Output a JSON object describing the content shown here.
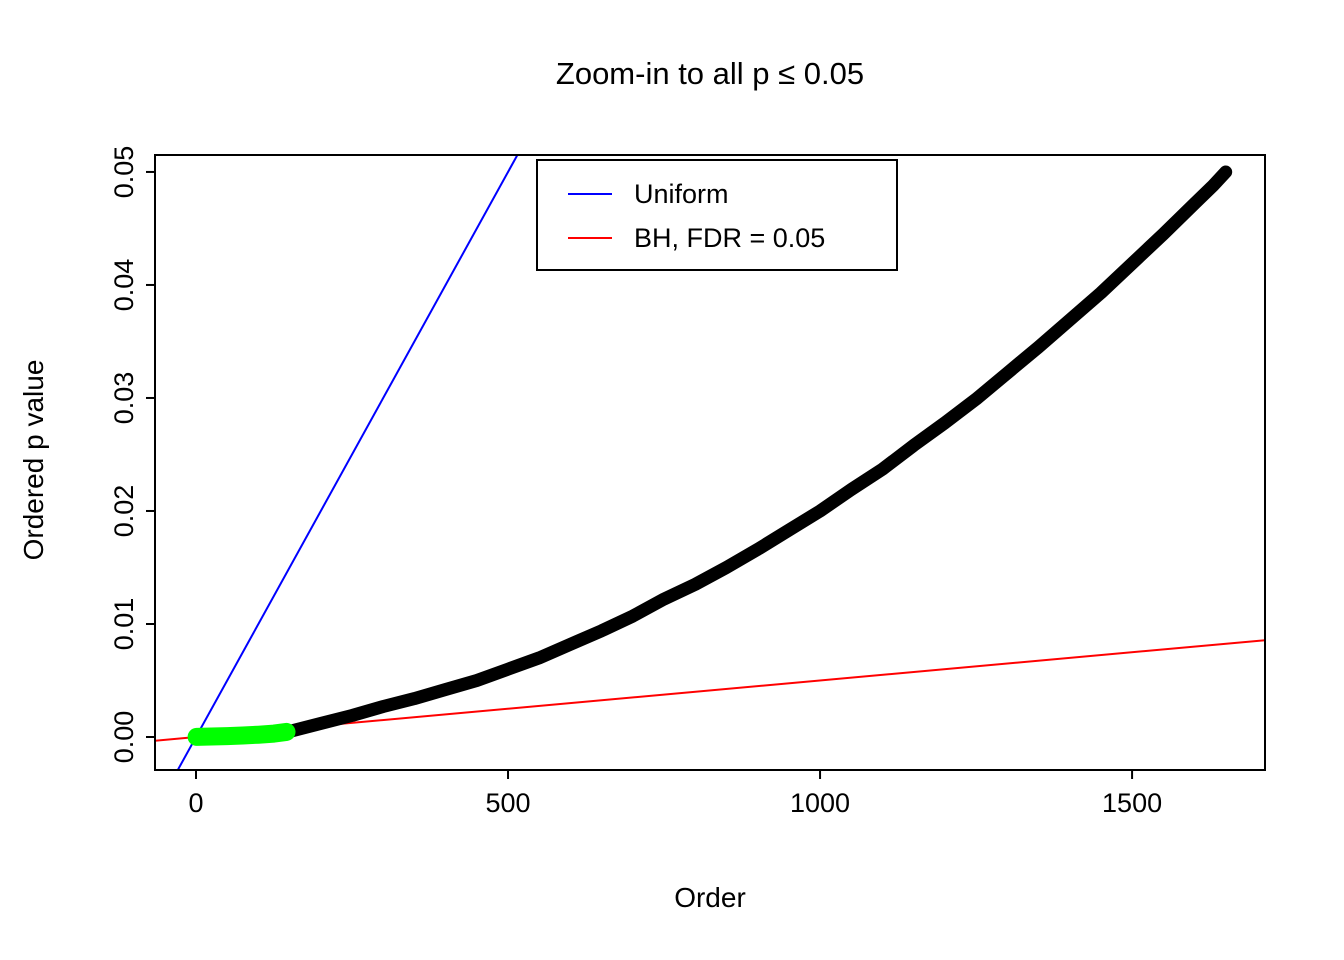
{
  "figure": {
    "background": "#FFFFFF"
  },
  "chart_data": {
    "type": "scatter",
    "title": "Zoom-in to all p ≤ 0.05",
    "xlabel": "Order",
    "ylabel": "Ordered p value",
    "xlim": [
      -65.7,
      1713
    ],
    "ylim": [
      -0.00292,
      0.0515
    ],
    "grid": false,
    "x_ticks": [
      {
        "value": 0,
        "label": "0"
      },
      {
        "value": 500,
        "label": "500"
      },
      {
        "value": 1000,
        "label": "1000"
      },
      {
        "value": 1500,
        "label": "1500"
      }
    ],
    "y_ticks": [
      {
        "value": 0.0,
        "label": "0.00"
      },
      {
        "value": 0.01,
        "label": "0.01"
      },
      {
        "value": 0.02,
        "label": "0.02"
      },
      {
        "value": 0.03,
        "label": "0.03"
      },
      {
        "value": 0.04,
        "label": "0.04"
      },
      {
        "value": 0.05,
        "label": "0.05"
      }
    ],
    "legend": {
      "position": "top-center",
      "border": true,
      "entries": [
        {
          "label": "Uniform",
          "color": "#0000FF"
        },
        {
          "label": "BH, FDR = 0.05",
          "color": "#FF0000"
        }
      ]
    },
    "reference_lines": [
      {
        "name": "uniform",
        "color": "#0000FF",
        "slope": 0.0001,
        "intercept": 0,
        "width": 2
      },
      {
        "name": "bh-fdr-005",
        "color": "#FF0000",
        "slope": 5e-06,
        "intercept": 0,
        "width": 2
      }
    ],
    "series": [
      {
        "name": "ordered-p-values",
        "color": "#000000",
        "style": "thick-dots",
        "stroke_width": 13,
        "points": [
          [
            0,
            1e-05
          ],
          [
            50,
            8e-05
          ],
          [
            100,
            0.0002
          ],
          [
            150,
            0.0005
          ],
          [
            200,
            0.0012
          ],
          [
            250,
            0.0019
          ],
          [
            300,
            0.0027
          ],
          [
            350,
            0.0034
          ],
          [
            400,
            0.0042
          ],
          [
            450,
            0.005
          ],
          [
            500,
            0.006
          ],
          [
            550,
            0.007
          ],
          [
            600,
            0.0082
          ],
          [
            650,
            0.0094
          ],
          [
            700,
            0.0107
          ],
          [
            750,
            0.0122
          ],
          [
            800,
            0.0135
          ],
          [
            850,
            0.015
          ],
          [
            900,
            0.0166
          ],
          [
            950,
            0.0183
          ],
          [
            1000,
            0.02
          ],
          [
            1050,
            0.0219
          ],
          [
            1100,
            0.0237
          ],
          [
            1150,
            0.0258
          ],
          [
            1200,
            0.0278
          ],
          [
            1250,
            0.0299
          ],
          [
            1300,
            0.0322
          ],
          [
            1350,
            0.0345
          ],
          [
            1400,
            0.0369
          ],
          [
            1450,
            0.0393
          ],
          [
            1500,
            0.0419
          ],
          [
            1550,
            0.0445
          ],
          [
            1600,
            0.0472
          ],
          [
            1630,
            0.0488
          ],
          [
            1650,
            0.05
          ]
        ]
      },
      {
        "name": "bh-significant",
        "color": "#00FF00",
        "style": "thick-dots",
        "stroke_width": 18,
        "points": [
          [
            1,
            5e-06
          ],
          [
            25,
            4e-05
          ],
          [
            50,
            8e-05
          ],
          [
            75,
            0.00013
          ],
          [
            100,
            0.0002
          ],
          [
            125,
            0.0003
          ],
          [
            145,
            0.00045
          ]
        ]
      }
    ]
  }
}
